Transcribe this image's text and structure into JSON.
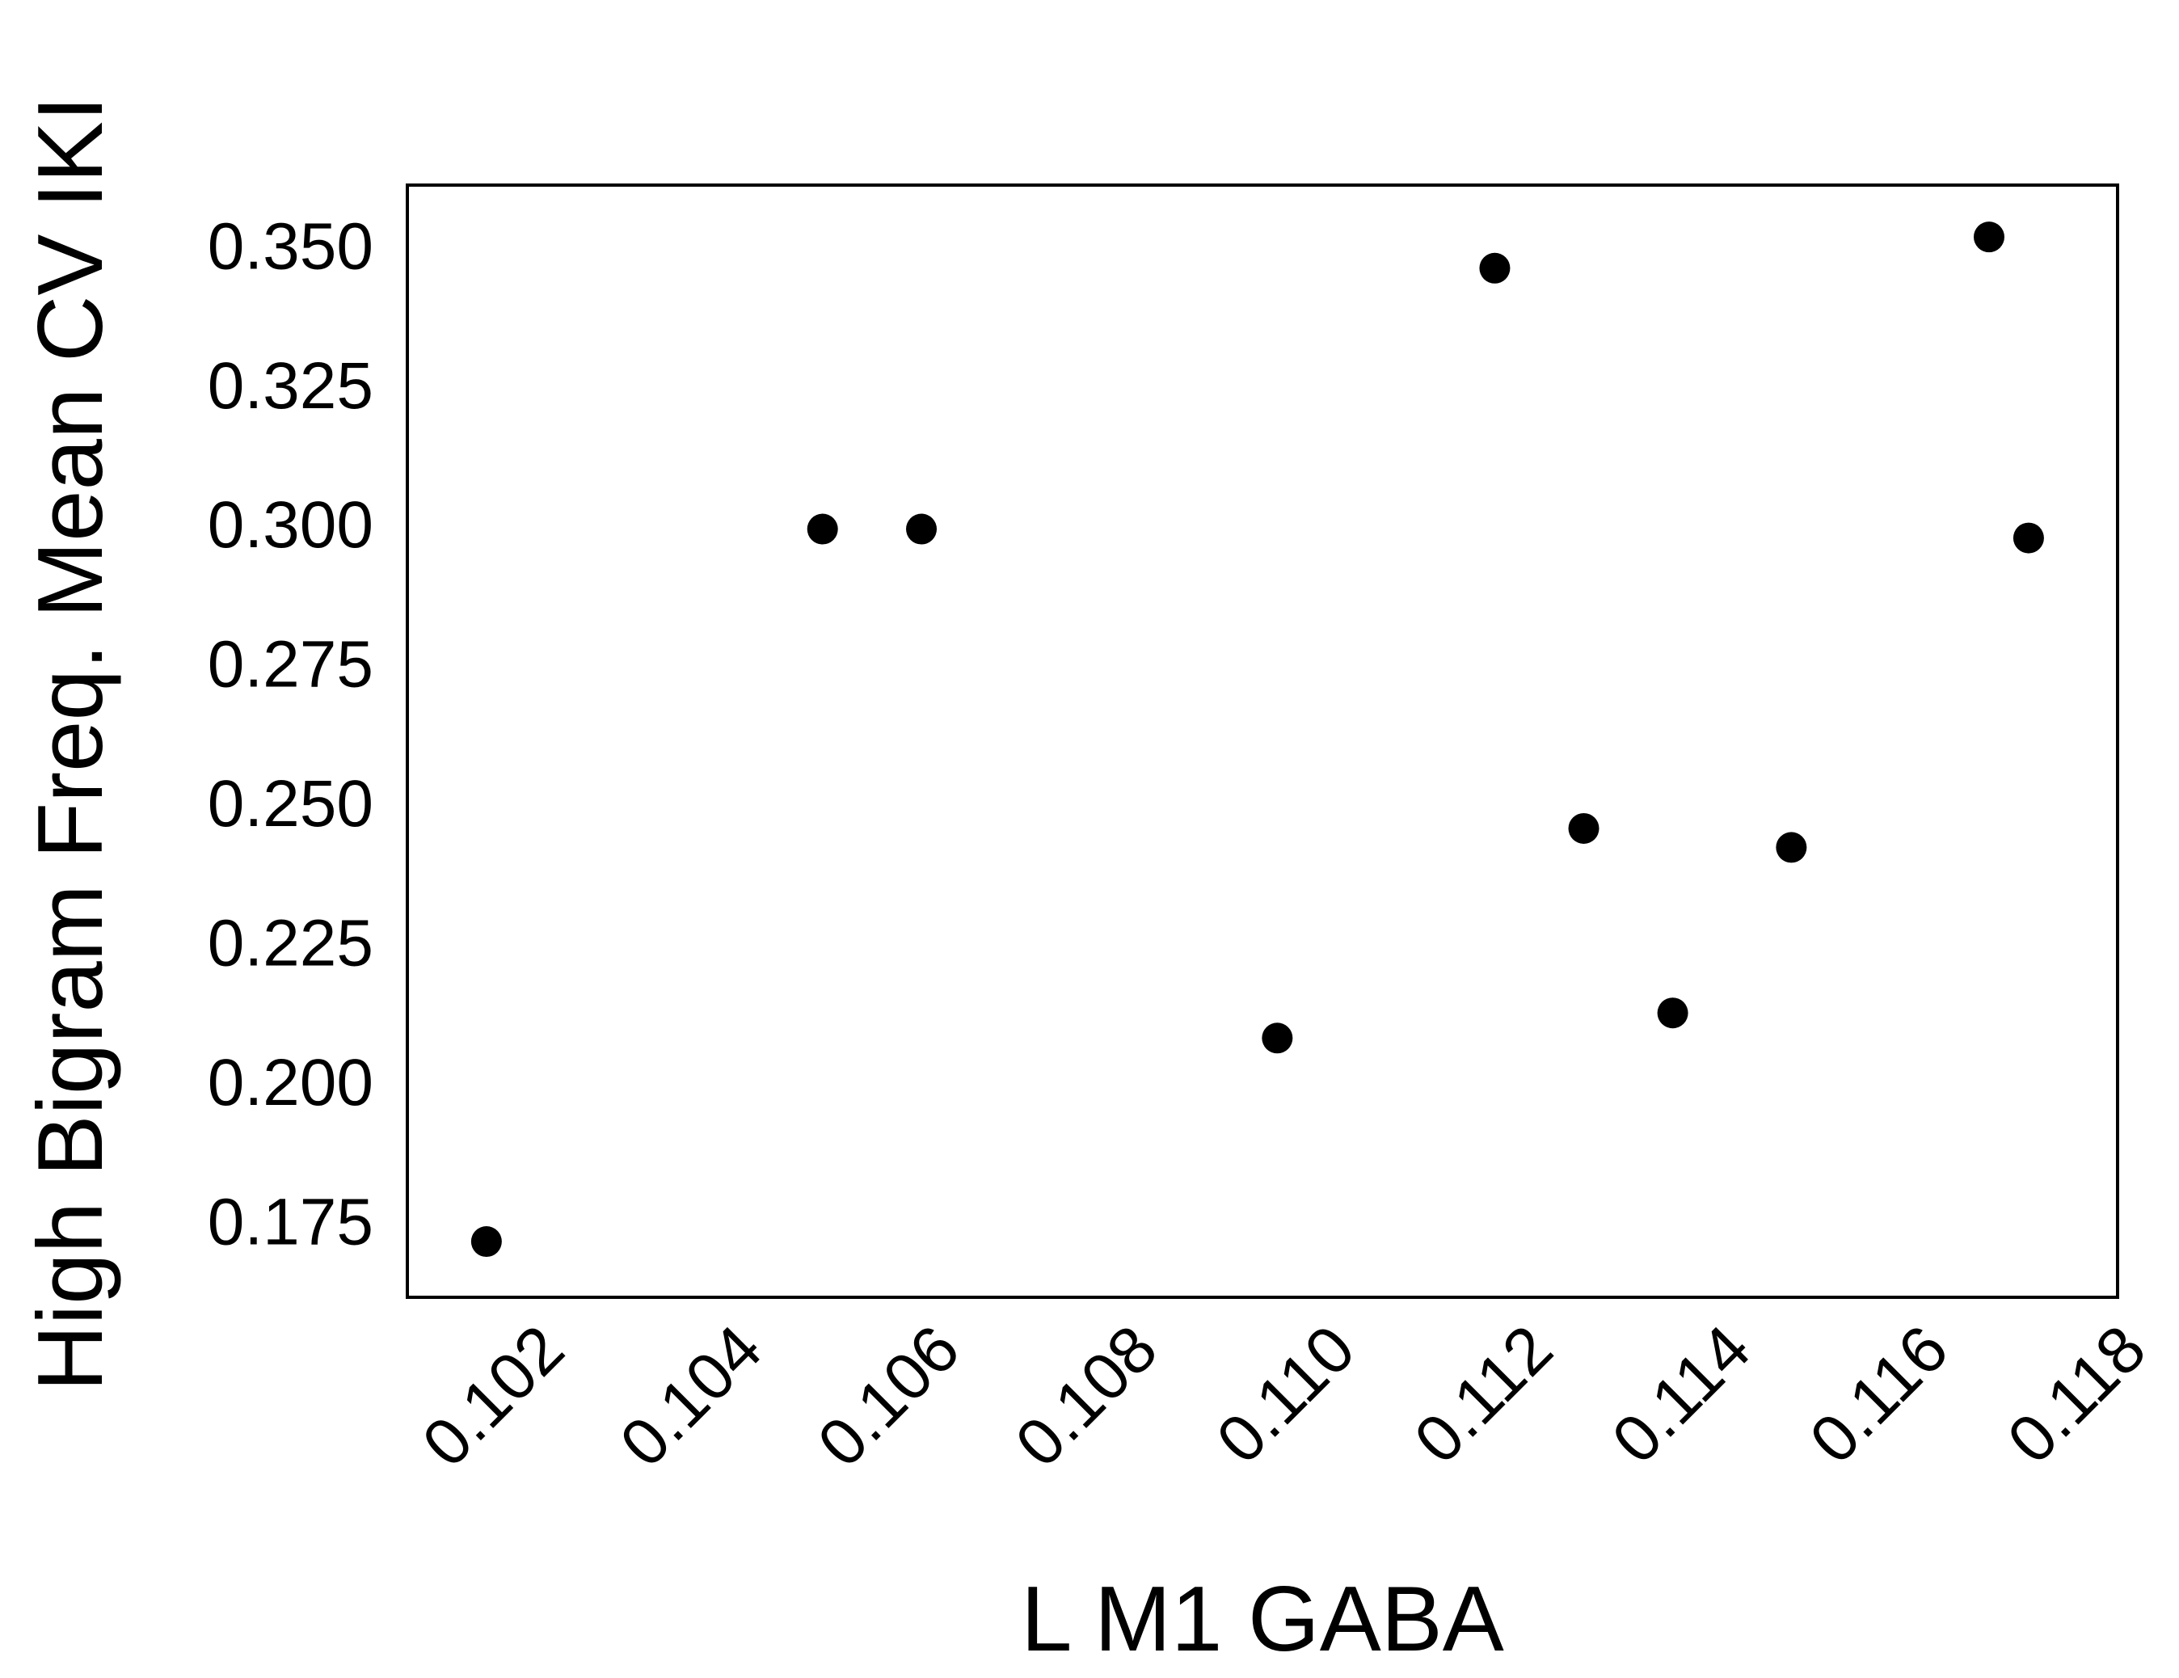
{
  "chart_data": {
    "type": "scatter",
    "title": "",
    "xlabel": "L M1 GABA",
    "ylabel": "High Bigram Freq. Mean CV IKI",
    "xlim": [
      0.1007,
      0.118
    ],
    "ylim": [
      0.1615,
      0.361
    ],
    "x_ticks": [
      "0.102",
      "0.104",
      "0.106",
      "0.108",
      "0.110",
      "0.112",
      "0.114",
      "0.116",
      "0.118"
    ],
    "y_ticks": [
      "0.175",
      "0.200",
      "0.225",
      "0.250",
      "0.275",
      "0.300",
      "0.325",
      "0.350"
    ],
    "grid": false,
    "marker_color": "#000000",
    "points": [
      {
        "x": 0.1015,
        "y": 0.1715
      },
      {
        "x": 0.1049,
        "y": 0.2993
      },
      {
        "x": 0.1059,
        "y": 0.2993
      },
      {
        "x": 0.1095,
        "y": 0.208
      },
      {
        "x": 0.1117,
        "y": 0.3461
      },
      {
        "x": 0.1126,
        "y": 0.2456
      },
      {
        "x": 0.1135,
        "y": 0.2125
      },
      {
        "x": 0.1147,
        "y": 0.2422
      },
      {
        "x": 0.1167,
        "y": 0.3517
      },
      {
        "x": 0.1171,
        "y": 0.2977
      }
    ]
  }
}
